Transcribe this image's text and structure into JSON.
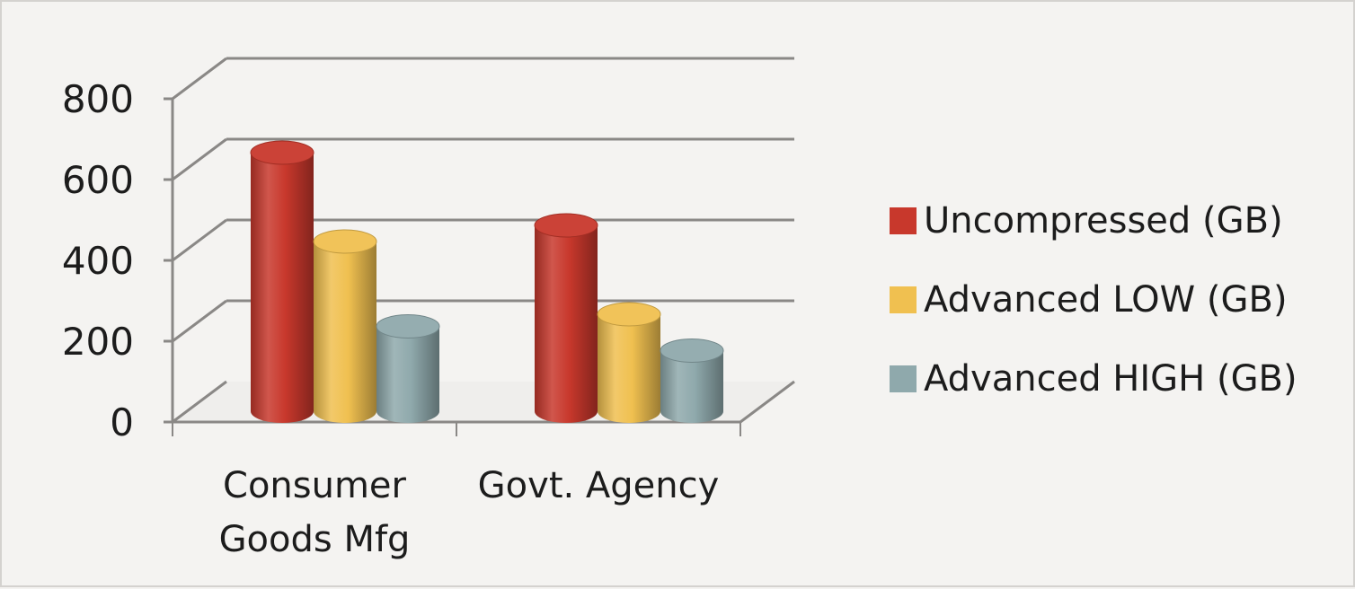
{
  "chart_data": {
    "type": "bar",
    "style": "3d-cylinder",
    "title": "",
    "xlabel": "",
    "ylabel": "",
    "ylim": [
      0,
      800
    ],
    "yticks": [
      "0",
      "200",
      "400",
      "600",
      "800"
    ],
    "grid": true,
    "legend_position": "right",
    "categories": [
      [
        "Consumer",
        "Goods Mfg"
      ],
      [
        "Govt. Agency"
      ]
    ],
    "series": [
      {
        "name": "Uncompressed (GB)",
        "color": "#c8382c",
        "values": [
          640,
          460
        ]
      },
      {
        "name": "Advanced LOW (GB)",
        "color": "#f0c050",
        "values": [
          420,
          240
        ]
      },
      {
        "name": "Advanced HIGH (GB)",
        "color": "#8fa9ac",
        "values": [
          210,
          150
        ]
      }
    ]
  }
}
